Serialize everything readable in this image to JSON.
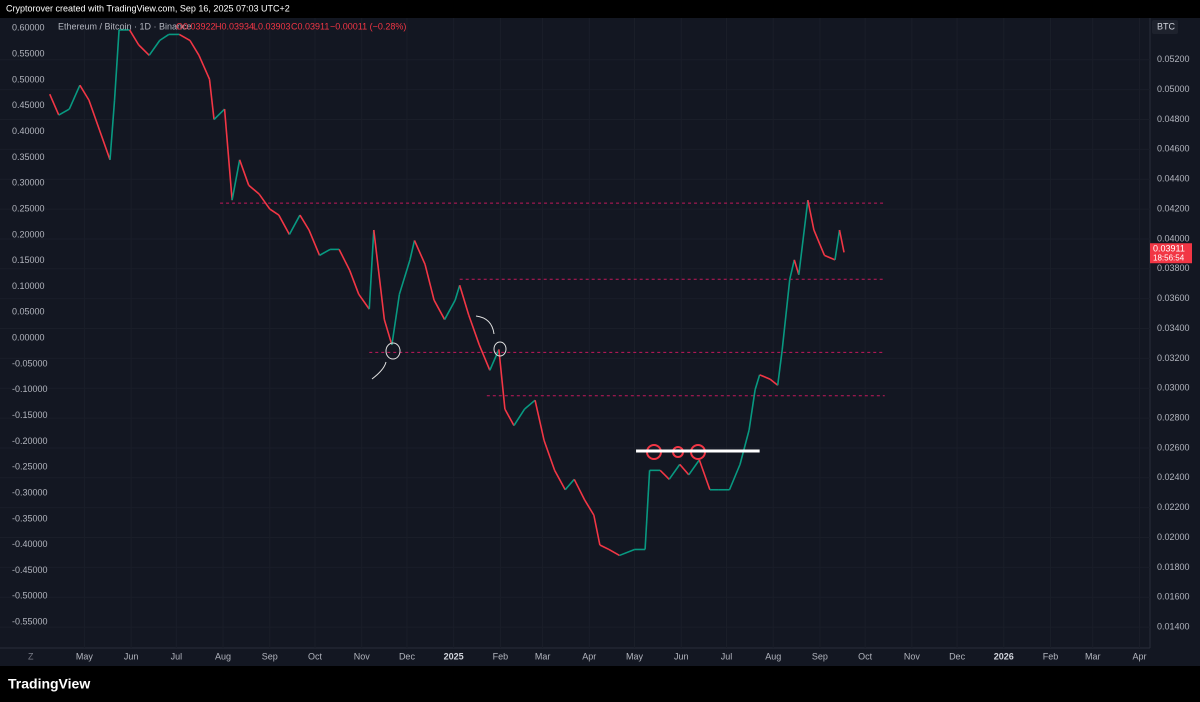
{
  "header": "Cryptorover created with TradingView.com, Sep 16, 2025 07:03 UTC+2",
  "chart_data": {
    "type": "line",
    "legend": {
      "symbol": "Ethereum / Bitcoin · 1D · Binance",
      "open": "O0.03922",
      "high": "H0.03934",
      "low": "L0.03903",
      "close": "C0.03911",
      "change": "−0.00011 (−0.28%)"
    },
    "currency": "BTC",
    "x": [
      -23,
      -17,
      -10,
      -3,
      3,
      10,
      17,
      20,
      23,
      30,
      36,
      43,
      50,
      56,
      63,
      70,
      76,
      83,
      86,
      93,
      98,
      103,
      109,
      116,
      123,
      129,
      136,
      143,
      149,
      156,
      163,
      169,
      176,
      182,
      189,
      192,
      199,
      204,
      209,
      216,
      219,
      226,
      232,
      239,
      246,
      249,
      255,
      262,
      269,
      275,
      279,
      285,
      292,
      299,
      305,
      312,
      319,
      325,
      332,
      338,
      342,
      348,
      355,
      365,
      372,
      375,
      382,
      388,
      395,
      401,
      408,
      415,
      421,
      428,
      435,
      441,
      445,
      448,
      455,
      460,
      463,
      468,
      471,
      474,
      480,
      484,
      491,
      498,
      501,
      504
    ],
    "series": [
      {
        "name": "Ethereum / Bitcoin",
        "up_color": "#089981",
        "down_color": "#f23645",
        "values": [
          0.0497,
          0.0483,
          0.0487,
          0.0503,
          0.0493,
          0.0473,
          0.0453,
          0.0493,
          0.054,
          0.054,
          0.053,
          0.0523,
          0.0533,
          0.0537,
          0.0537,
          0.0533,
          0.0523,
          0.0507,
          0.048,
          0.0487,
          0.0426,
          0.0453,
          0.0436,
          0.043,
          0.042,
          0.0416,
          0.0403,
          0.0416,
          0.0406,
          0.0389,
          0.0393,
          0.0393,
          0.0379,
          0.0363,
          0.0353,
          0.0406,
          0.0346,
          0.0329,
          0.0363,
          0.0386,
          0.0399,
          0.0383,
          0.0359,
          0.0346,
          0.0359,
          0.0369,
          0.0349,
          0.0329,
          0.0312,
          0.0326,
          0.0286,
          0.0275,
          0.0286,
          0.0292,
          0.0265,
          0.0245,
          0.0232,
          0.0239,
          0.0225,
          0.0215,
          0.0195,
          0.0192,
          0.0188,
          0.0192,
          0.0192,
          0.0245,
          0.0245,
          0.0239,
          0.0249,
          0.0242,
          0.0252,
          0.0232,
          0.0232,
          0.0232,
          0.0249,
          0.0272,
          0.0299,
          0.0309,
          0.0306,
          0.0302,
          0.0326,
          0.0373,
          0.0386,
          0.0376,
          0.0426,
          0.0406,
          0.0389,
          0.0386,
          0.0406,
          0.0391
        ]
      }
    ],
    "last_price": 0.03911,
    "countdown": "18:56:54",
    "last_color": "#f23645",
    "levels": [
      {
        "value": 0.0424,
        "x": [
          90,
          531
        ]
      },
      {
        "value": 0.0373,
        "x": [
          249,
          531
        ]
      },
      {
        "value": 0.0324,
        "x": [
          189,
          531
        ]
      },
      {
        "value": 0.0295,
        "x": [
          267,
          531
        ]
      }
    ],
    "level_color": "#c2185b",
    "support": {
      "value": 0.0258,
      "x": [
        366,
        448
      ],
      "color": "#ffffff"
    },
    "xlim": [
      -56,
      707
    ],
    "xticks": [
      {
        "value": 0,
        "label": "May"
      },
      {
        "value": 31,
        "label": "Jun"
      },
      {
        "value": 61,
        "label": "Jul"
      },
      {
        "value": 92,
        "label": "Aug"
      },
      {
        "value": 123,
        "label": "Sep"
      },
      {
        "value": 153,
        "label": "Oct"
      },
      {
        "value": 184,
        "label": "Nov"
      },
      {
        "value": 214,
        "label": "Dec"
      },
      {
        "value": 245,
        "label": "2025"
      },
      {
        "value": 276,
        "label": "Feb"
      },
      {
        "value": 304,
        "label": "Mar"
      },
      {
        "value": 335,
        "label": "Apr"
      },
      {
        "value": 365,
        "label": "May"
      },
      {
        "value": 396,
        "label": "Jun"
      },
      {
        "value": 426,
        "label": "Jul"
      },
      {
        "value": 457,
        "label": "Aug"
      },
      {
        "value": 488,
        "label": "Sep"
      },
      {
        "value": 518,
        "label": "Oct"
      },
      {
        "value": 549,
        "label": "Nov"
      },
      {
        "value": 579,
        "label": "Dec"
      },
      {
        "value": 610,
        "label": "2026"
      },
      {
        "value": 641,
        "label": "Feb"
      },
      {
        "value": 669,
        "label": "Mar"
      },
      {
        "value": 700,
        "label": "Apr"
      }
    ],
    "ylim": [
      0.0126,
      0.0548
    ],
    "yticks": [
      {
        "value": 0.052,
        "label": "0.05200"
      },
      {
        "value": 0.05,
        "label": "0.05000"
      },
      {
        "value": 0.048,
        "label": "0.04800"
      },
      {
        "value": 0.046,
        "label": "0.04600"
      },
      {
        "value": 0.044,
        "label": "0.04400"
      },
      {
        "value": 0.042,
        "label": "0.04200"
      },
      {
        "value": 0.04,
        "label": "0.04000"
      },
      {
        "value": 0.038,
        "label": "0.03800"
      },
      {
        "value": 0.036,
        "label": "0.03600"
      },
      {
        "value": 0.034,
        "label": "0.03400"
      },
      {
        "value": 0.032,
        "label": "0.03200"
      },
      {
        "value": 0.03,
        "label": "0.03000"
      },
      {
        "value": 0.028,
        "label": "0.02800"
      },
      {
        "value": 0.026,
        "label": "0.02600"
      },
      {
        "value": 0.024,
        "label": "0.02400"
      },
      {
        "value": 0.022,
        "label": "0.02200"
      },
      {
        "value": 0.02,
        "label": "0.02000"
      },
      {
        "value": 0.018,
        "label": "0.01800"
      },
      {
        "value": 0.016,
        "label": "0.01600"
      },
      {
        "value": 0.014,
        "label": "0.01400"
      }
    ],
    "y2lim": [
      -0.6,
      0.62
    ],
    "y2ticks": [
      {
        "value": 0.6,
        "label": "0.60000"
      },
      {
        "value": 0.55,
        "label": "0.55000"
      },
      {
        "value": 0.5,
        "label": "0.50000"
      },
      {
        "value": 0.45,
        "label": "0.45000"
      },
      {
        "value": 0.4,
        "label": "0.40000"
      },
      {
        "value": 0.35,
        "label": "0.35000"
      },
      {
        "value": 0.3,
        "label": "0.30000"
      },
      {
        "value": 0.25,
        "label": "0.25000"
      },
      {
        "value": 0.2,
        "label": "0.20000"
      },
      {
        "value": 0.15,
        "label": "0.15000"
      },
      {
        "value": 0.1,
        "label": "0.10000"
      },
      {
        "value": 0.05,
        "label": "0.05000"
      },
      {
        "value": 0,
        "label": "0.00000"
      },
      {
        "value": -0.05,
        "label": "-0.05000"
      },
      {
        "value": -0.1,
        "label": "-0.10000"
      },
      {
        "value": -0.15,
        "label": "-0.15000"
      },
      {
        "value": -0.2,
        "label": "-0.20000"
      },
      {
        "value": -0.25,
        "label": "-0.25000"
      },
      {
        "value": -0.3,
        "label": "-0.30000"
      },
      {
        "value": -0.35,
        "label": "-0.35000"
      },
      {
        "value": -0.4,
        "label": "-0.40000"
      },
      {
        "value": -0.45,
        "label": "-0.45000"
      },
      {
        "value": -0.5,
        "label": "-0.50000"
      },
      {
        "value": -0.55,
        "label": "-0.55000"
      }
    ],
    "zoom_label": "Z"
  },
  "footer": {
    "brand": "TradingView"
  }
}
